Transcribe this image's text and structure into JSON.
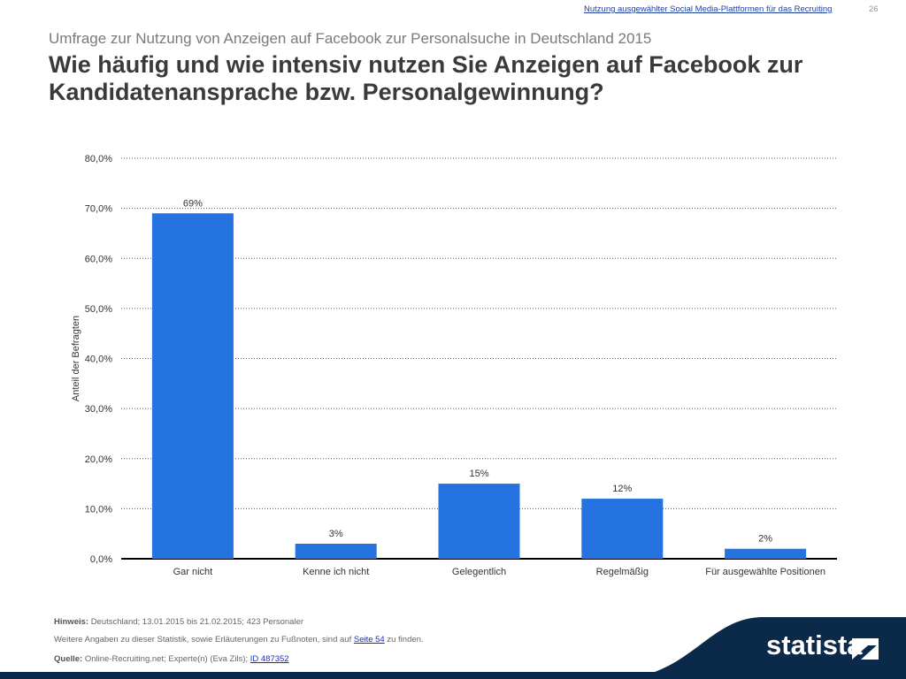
{
  "header": {
    "link_text": "Nutzung ausgewählter Social Media-Plattformen für das Recruiting",
    "page_number": "26"
  },
  "subtitle": "Umfrage zur Nutzung von Anzeigen auf Facebook zur Personalsuche in Deutschland 2015",
  "title": "Wie häufig und wie intensiv nutzen Sie Anzeigen auf Facebook zur Kandidatenansprache bzw. Personalgewinnung?",
  "chart_data": {
    "type": "bar",
    "categories": [
      "Gar nicht",
      "Kenne ich nicht",
      "Gelegentlich",
      "Regelmäßig",
      "Für ausgewählte Positionen"
    ],
    "values": [
      69,
      3,
      15,
      12,
      2
    ],
    "data_labels": [
      "69%",
      "3%",
      "15%",
      "12%",
      "2%"
    ],
    "ylabel": "Anteil der Befragten",
    "xlabel": "",
    "ylim": [
      0,
      80
    ],
    "yticks": [
      0,
      10,
      20,
      30,
      40,
      50,
      60,
      70,
      80
    ],
    "ytick_labels": [
      "0,0%",
      "10,0%",
      "20,0%",
      "30,0%",
      "40,0%",
      "50,0%",
      "60,0%",
      "70,0%",
      "80,0%"
    ],
    "grid": true,
    "bar_color": "#2573e0"
  },
  "footer": {
    "hint_label": "Hinweis:",
    "hint_text": "Deutschland; 13.01.2015 bis 21.02.2015; 423 Personaler",
    "more_text_before": "Weitere Angaben zu dieser Statistik, sowie Erläuterungen zu Fußnoten, sind auf",
    "more_link": "Seite 54",
    "more_text_after": "zu finden.",
    "source_label": "Quelle:",
    "source_text": "Online-Recruiting.net; Experte(n) (Eva Zils);",
    "source_link": "ID 487352"
  },
  "logo": {
    "text": "statista",
    "color": "#0b2a4a"
  }
}
